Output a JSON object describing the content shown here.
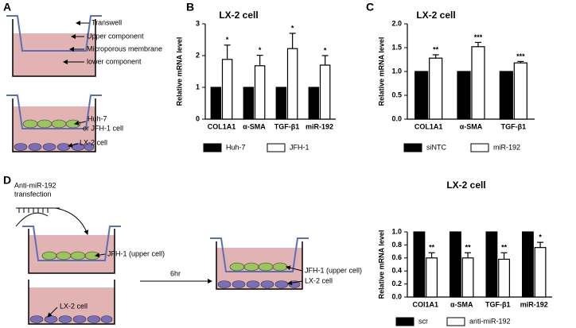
{
  "panels": [
    "A",
    "B",
    "C",
    "D"
  ],
  "diagram_a": {
    "labels": [
      "Transwell",
      "Upper component",
      "Microporous membrane",
      "lower component"
    ],
    "cells": [
      "Huh-7",
      "or JFH-1 cell",
      "LX-2 cell"
    ]
  },
  "diagram_d": {
    "transfection": [
      "Anti-miR-192",
      "transfection"
    ],
    "upper": "JFH-1 (upper cell)",
    "lower": "LX-2 cell",
    "time": "6hr",
    "combined_upper": "JFH-1 (upper cell)",
    "combined_lower": "LX-2 cell"
  },
  "chart_data": [
    {
      "type": "bar",
      "title": "LX-2 cell",
      "y_label": "Relative mRNA level",
      "categories": [
        "COL1A1",
        "α-SMA",
        "TGF-β1",
        "miR-192"
      ],
      "series": [
        {
          "name": "Huh-7",
          "color": "#000000",
          "values": [
            1,
            1,
            1,
            1
          ]
        },
        {
          "name": "JFH-1",
          "color": "#ffffff",
          "values": [
            1.88,
            1.68,
            2.22,
            1.7
          ],
          "errors": [
            0.45,
            0.33,
            0.48,
            0.3
          ]
        }
      ],
      "annotations": [
        "*",
        "*",
        "*",
        "*"
      ],
      "ylim": [
        0,
        3
      ],
      "yticks": [
        0,
        1,
        2,
        3
      ],
      "legend": "bottom"
    },
    {
      "type": "bar",
      "title": "LX-2 cell",
      "y_label": "Relative mRNA level",
      "categories": [
        "COL1A1",
        "α-SMA",
        "TGF-β1"
      ],
      "series": [
        {
          "name": "siNTC",
          "color": "#000000",
          "values": [
            1,
            1,
            1
          ]
        },
        {
          "name": "miR-192",
          "color": "#ffffff",
          "values": [
            1.28,
            1.52,
            1.18
          ],
          "errors": [
            0.07,
            0.09,
            0.03
          ]
        }
      ],
      "annotations": [
        "**",
        "***",
        "***"
      ],
      "ylim": [
        0,
        2
      ],
      "yticks": [
        {
          "value": 0,
          "label": "0.0"
        },
        0.5,
        {
          "value": 1,
          "label": "1.0"
        },
        1.5,
        {
          "value": 2,
          "label": "2.0"
        }
      ],
      "legend": "bottom"
    },
    {
      "type": "bar",
      "title": "LX-2 cell",
      "y_label": "Relative  mRNA level",
      "categories": [
        "COl1A1",
        "α-SMA",
        "TGF-β1",
        "miR-192"
      ],
      "series": [
        {
          "name": "scr",
          "color": "#000000",
          "values": [
            1,
            1,
            1,
            1
          ]
        },
        {
          "name": "anti-miR-192",
          "color": "#ffffff",
          "values": [
            0.6,
            0.6,
            0.58,
            0.76
          ],
          "errors": [
            0.08,
            0.08,
            0.1,
            0.08
          ]
        }
      ],
      "annotations": [
        "**",
        "**",
        "**",
        "*"
      ],
      "ylim": [
        0,
        1
      ],
      "yticks": [
        {
          "value": 0,
          "label": "0.0"
        },
        0.2,
        0.4,
        0.6,
        0.8,
        {
          "value": 1,
          "label": "1.0"
        }
      ],
      "legend": "bottom"
    }
  ]
}
